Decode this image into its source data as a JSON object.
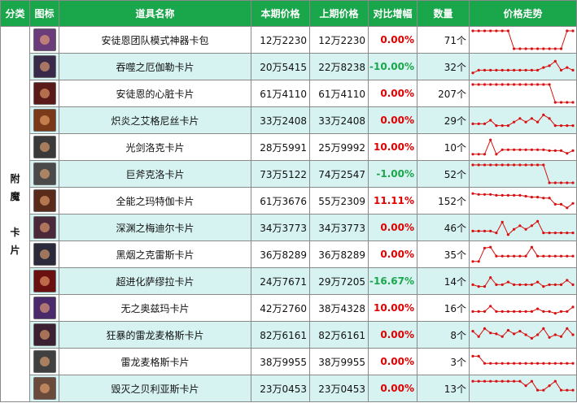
{
  "header": {
    "category": "分类",
    "icon": "图标",
    "name": "道具名称",
    "current_price": "本期价格",
    "previous_price": "上期价格",
    "change": "对比增幅",
    "quantity": "数量",
    "trend": "价格走势"
  },
  "category_label": "附\n魔\n\n卡\n片",
  "colors": {
    "header_bg": "#1aa64a",
    "row_alt_bg": "#d6f3f1",
    "zero": "#e00000",
    "up": "#e00000",
    "down": "#1aa64a",
    "trend_line": "#d81010"
  },
  "rows": [
    {
      "name": "安徒恩团队模式神器卡包",
      "icon": "card-pack-icon",
      "current": "12万2230",
      "previous": "12万2230",
      "change": "0.00%",
      "dir": "zero",
      "qty": "71个",
      "trend": [
        1,
        1,
        1,
        1,
        1,
        1,
        1,
        0,
        0,
        0,
        0,
        0,
        0,
        0,
        0,
        0,
        1,
        1
      ]
    },
    {
      "name": "吞噬之厄伽勒卡片",
      "icon": "card-icon",
      "current": "20万5415",
      "previous": "22万8238",
      "change": "-10.00%",
      "dir": "down",
      "qty": "32个",
      "trend": [
        0.15,
        0.3,
        0.3,
        0.3,
        0.3,
        0.3,
        0.3,
        0.3,
        0.3,
        0.3,
        0.3,
        0.3,
        0.45,
        0.55,
        0.8,
        0.3,
        0.45,
        0.3
      ]
    },
    {
      "name": "安徒恩的心脏卡片",
      "icon": "card-icon",
      "current": "61万4110",
      "previous": "61万4110",
      "change": "0.00%",
      "dir": "zero",
      "qty": "207个",
      "trend": [
        1,
        1,
        1,
        1,
        1,
        1,
        1,
        1,
        1,
        1,
        1,
        1,
        1,
        1,
        0,
        0,
        0,
        0
      ]
    },
    {
      "name": "炽炎之艾格尼丝卡片",
      "icon": "card-icon",
      "current": "33万2408",
      "previous": "33万2408",
      "change": "0.00%",
      "dir": "zero",
      "qty": "29个",
      "trend": [
        0.3,
        0.3,
        0.3,
        0.5,
        0.2,
        0.2,
        0.2,
        0.4,
        0.6,
        0.4,
        0.6,
        0.4,
        0.8,
        0.6,
        0.2,
        0.2,
        0.2,
        0.2
      ]
    },
    {
      "name": "光剑洛克卡片",
      "icon": "card-icon",
      "current": "28万5991",
      "previous": "25万9992",
      "change": "10.00%",
      "dir": "up",
      "qty": "10个",
      "trend": [
        0.1,
        0.1,
        0.1,
        0.9,
        0.1,
        0.35,
        0.35,
        0.35,
        0.35,
        0.35,
        0.35,
        0.35,
        0.35,
        0.3,
        0.3,
        0.3,
        0.15,
        0.3
      ]
    },
    {
      "name": "巨斧克洛卡片",
      "icon": "card-icon",
      "current": "73万5122",
      "previous": "74万2547",
      "change": "-1.00%",
      "dir": "down",
      "qty": "52个",
      "trend": [
        1,
        1,
        1,
        1,
        1,
        1,
        1,
        1,
        1,
        1,
        1,
        1,
        1,
        0,
        0,
        0,
        0,
        0
      ]
    },
    {
      "name": "全能之玛特伽卡片",
      "icon": "card-icon",
      "current": "61万3676",
      "previous": "55万2309",
      "change": "11.11%",
      "dir": "up",
      "qty": "152个",
      "trend": [
        0.9,
        0.85,
        0.85,
        0.85,
        0.8,
        0.8,
        0.8,
        0.8,
        0.8,
        0.75,
        0.7,
        0.7,
        0.65,
        0.65,
        0.3,
        0.3,
        0.1,
        0.35
      ]
    },
    {
      "name": "深渊之梅迪尔卡片",
      "icon": "card-icon",
      "current": "34万3773",
      "previous": "34万3773",
      "change": "0.00%",
      "dir": "zero",
      "qty": "46个",
      "trend": [
        0.3,
        0.3,
        0.3,
        0.3,
        0.2,
        0.8,
        0.1,
        0.4,
        0.6,
        0.4,
        0.6,
        0.85,
        0.2,
        0.2,
        0.2,
        0.2,
        0.2,
        0.2
      ]
    },
    {
      "name": "黑烟之克雷斯卡片",
      "icon": "card-icon",
      "current": "36万8289",
      "previous": "36万8289",
      "change": "0.00%",
      "dir": "zero",
      "qty": "35个",
      "trend": [
        0.1,
        0.1,
        0.85,
        0.9,
        0.4,
        0.4,
        0.4,
        0.4,
        0.4,
        0.4,
        0.9,
        0.4,
        0.4,
        0.4,
        0.4,
        0.4,
        0.4,
        0.4
      ]
    },
    {
      "name": "超进化萨缪拉卡片",
      "icon": "card-icon",
      "current": "24万7671",
      "previous": "29万7205",
      "change": "-16.67%",
      "dir": "down",
      "qty": "14个",
      "trend": [
        0.3,
        0.2,
        0.2,
        0.7,
        0.3,
        0.3,
        0.45,
        0.3,
        0.3,
        0.3,
        0.3,
        0.45,
        0.2,
        0.3,
        0.3,
        0.3,
        0.55,
        0.3
      ]
    },
    {
      "name": "无之奥兹玛卡片",
      "icon": "card-icon",
      "current": "42万2760",
      "previous": "38万4328",
      "change": "10.00%",
      "dir": "up",
      "qty": "16个",
      "trend": [
        0.3,
        0.3,
        0.3,
        0.6,
        0.3,
        0.3,
        0.3,
        0.3,
        0.3,
        0.3,
        0.3,
        0.45,
        0.3,
        0.3,
        0.2,
        0.3,
        0.3,
        0.55
      ]
    },
    {
      "name": "狂暴的雷龙麦格斯卡片",
      "icon": "card-icon",
      "current": "82万6161",
      "previous": "82万6161",
      "change": "0.00%",
      "dir": "zero",
      "qty": "8个",
      "trend": [
        0.7,
        0.4,
        0.85,
        0.6,
        0.55,
        0.4,
        0.75,
        0.55,
        0.7,
        0.5,
        0.3,
        0.5,
        0.85,
        0.35,
        0.5,
        0.4,
        0.85,
        0.5
      ]
    },
    {
      "name": "雷龙麦格斯卡片",
      "icon": "card-icon",
      "current": "38万9955",
      "previous": "38万9955",
      "change": "0.00%",
      "dir": "zero",
      "qty": "3个",
      "trend": [
        0.8,
        0.8,
        0.4,
        0.4,
        0.4,
        0.4,
        0.4,
        0.4,
        0.4,
        0.4,
        0.4,
        0.4,
        0.4,
        0.4,
        0.4,
        0.4,
        0.4,
        0.4
      ]
    },
    {
      "name": "毁灭之贝利亚斯卡片",
      "icon": "card-icon",
      "current": "23万0453",
      "previous": "23万0453",
      "change": "0.00%",
      "dir": "zero",
      "qty": "13个",
      "trend": [
        0.9,
        0.9,
        0.9,
        0.9,
        0.9,
        0.9,
        0.9,
        0.9,
        0.9,
        0.65,
        0.9,
        0.4,
        0.4,
        0.65,
        0.9,
        0.4,
        0.4,
        0.4
      ]
    }
  ]
}
